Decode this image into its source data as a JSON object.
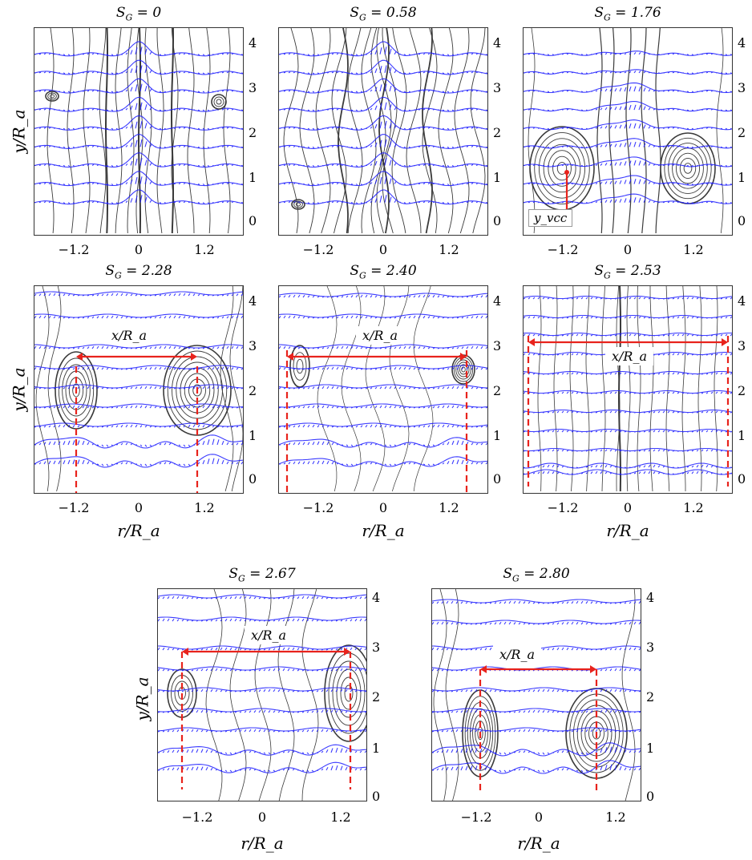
{
  "figure": {
    "x_axis_label": "r/R_a",
    "y_axis_label": "y/R_a",
    "x_ticks": [
      "−1.2",
      "0",
      "1.2"
    ],
    "y_ticks": [
      "4",
      "3",
      "2",
      "1",
      "0"
    ],
    "dimension_label": "x/R_a",
    "vortex_core_label": "y_vcc",
    "colors": {
      "streamline": "#3a3a3a",
      "velocity_vectors": "#1a1aff",
      "annotation": "#e8231c"
    }
  },
  "panels": [
    {
      "id": "p1",
      "title_main": "S",
      "title_sub": "G",
      "title_value": " = 0"
    },
    {
      "id": "p2",
      "title_main": "S",
      "title_sub": "G",
      "title_value": " = 0.58"
    },
    {
      "id": "p3",
      "title_main": "S",
      "title_sub": "G",
      "title_value": " = 1.76"
    },
    {
      "id": "p4",
      "title_main": "S",
      "title_sub": "G",
      "title_value": " = 2.28"
    },
    {
      "id": "p5",
      "title_main": "S",
      "title_sub": "G",
      "title_value": " = 2.40"
    },
    {
      "id": "p6",
      "title_main": "S",
      "title_sub": "G",
      "title_value": " = 2.53"
    },
    {
      "id": "p7",
      "title_main": "S",
      "title_sub": "G",
      "title_value": " = 2.67"
    },
    {
      "id": "p8",
      "title_main": "S",
      "title_sub": "G",
      "title_value": " = 2.80"
    }
  ]
}
